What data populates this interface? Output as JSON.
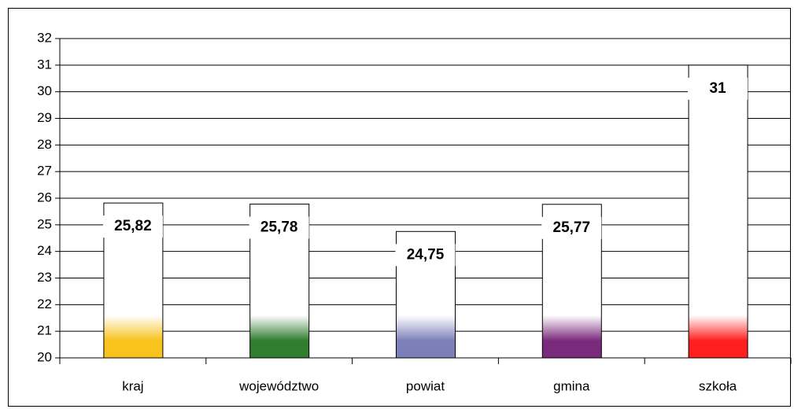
{
  "chart_data": {
    "type": "bar",
    "categories": [
      "kraj",
      "województwo",
      "powiat",
      "gmina",
      "szkoła"
    ],
    "values": [
      25.82,
      25.78,
      24.75,
      25.77,
      31
    ],
    "value_labels": [
      "25,82",
      "25,78",
      "24,75",
      "25,77",
      "31"
    ],
    "colors": [
      "#f7c31c",
      "#2f7d2f",
      "#7d80b8",
      "#7a2a7a",
      "#ff1f1f"
    ],
    "ylim": [
      20,
      32
    ],
    "yticks": [
      20,
      21,
      22,
      23,
      24,
      25,
      26,
      27,
      28,
      29,
      30,
      31,
      32
    ],
    "grid": true
  }
}
